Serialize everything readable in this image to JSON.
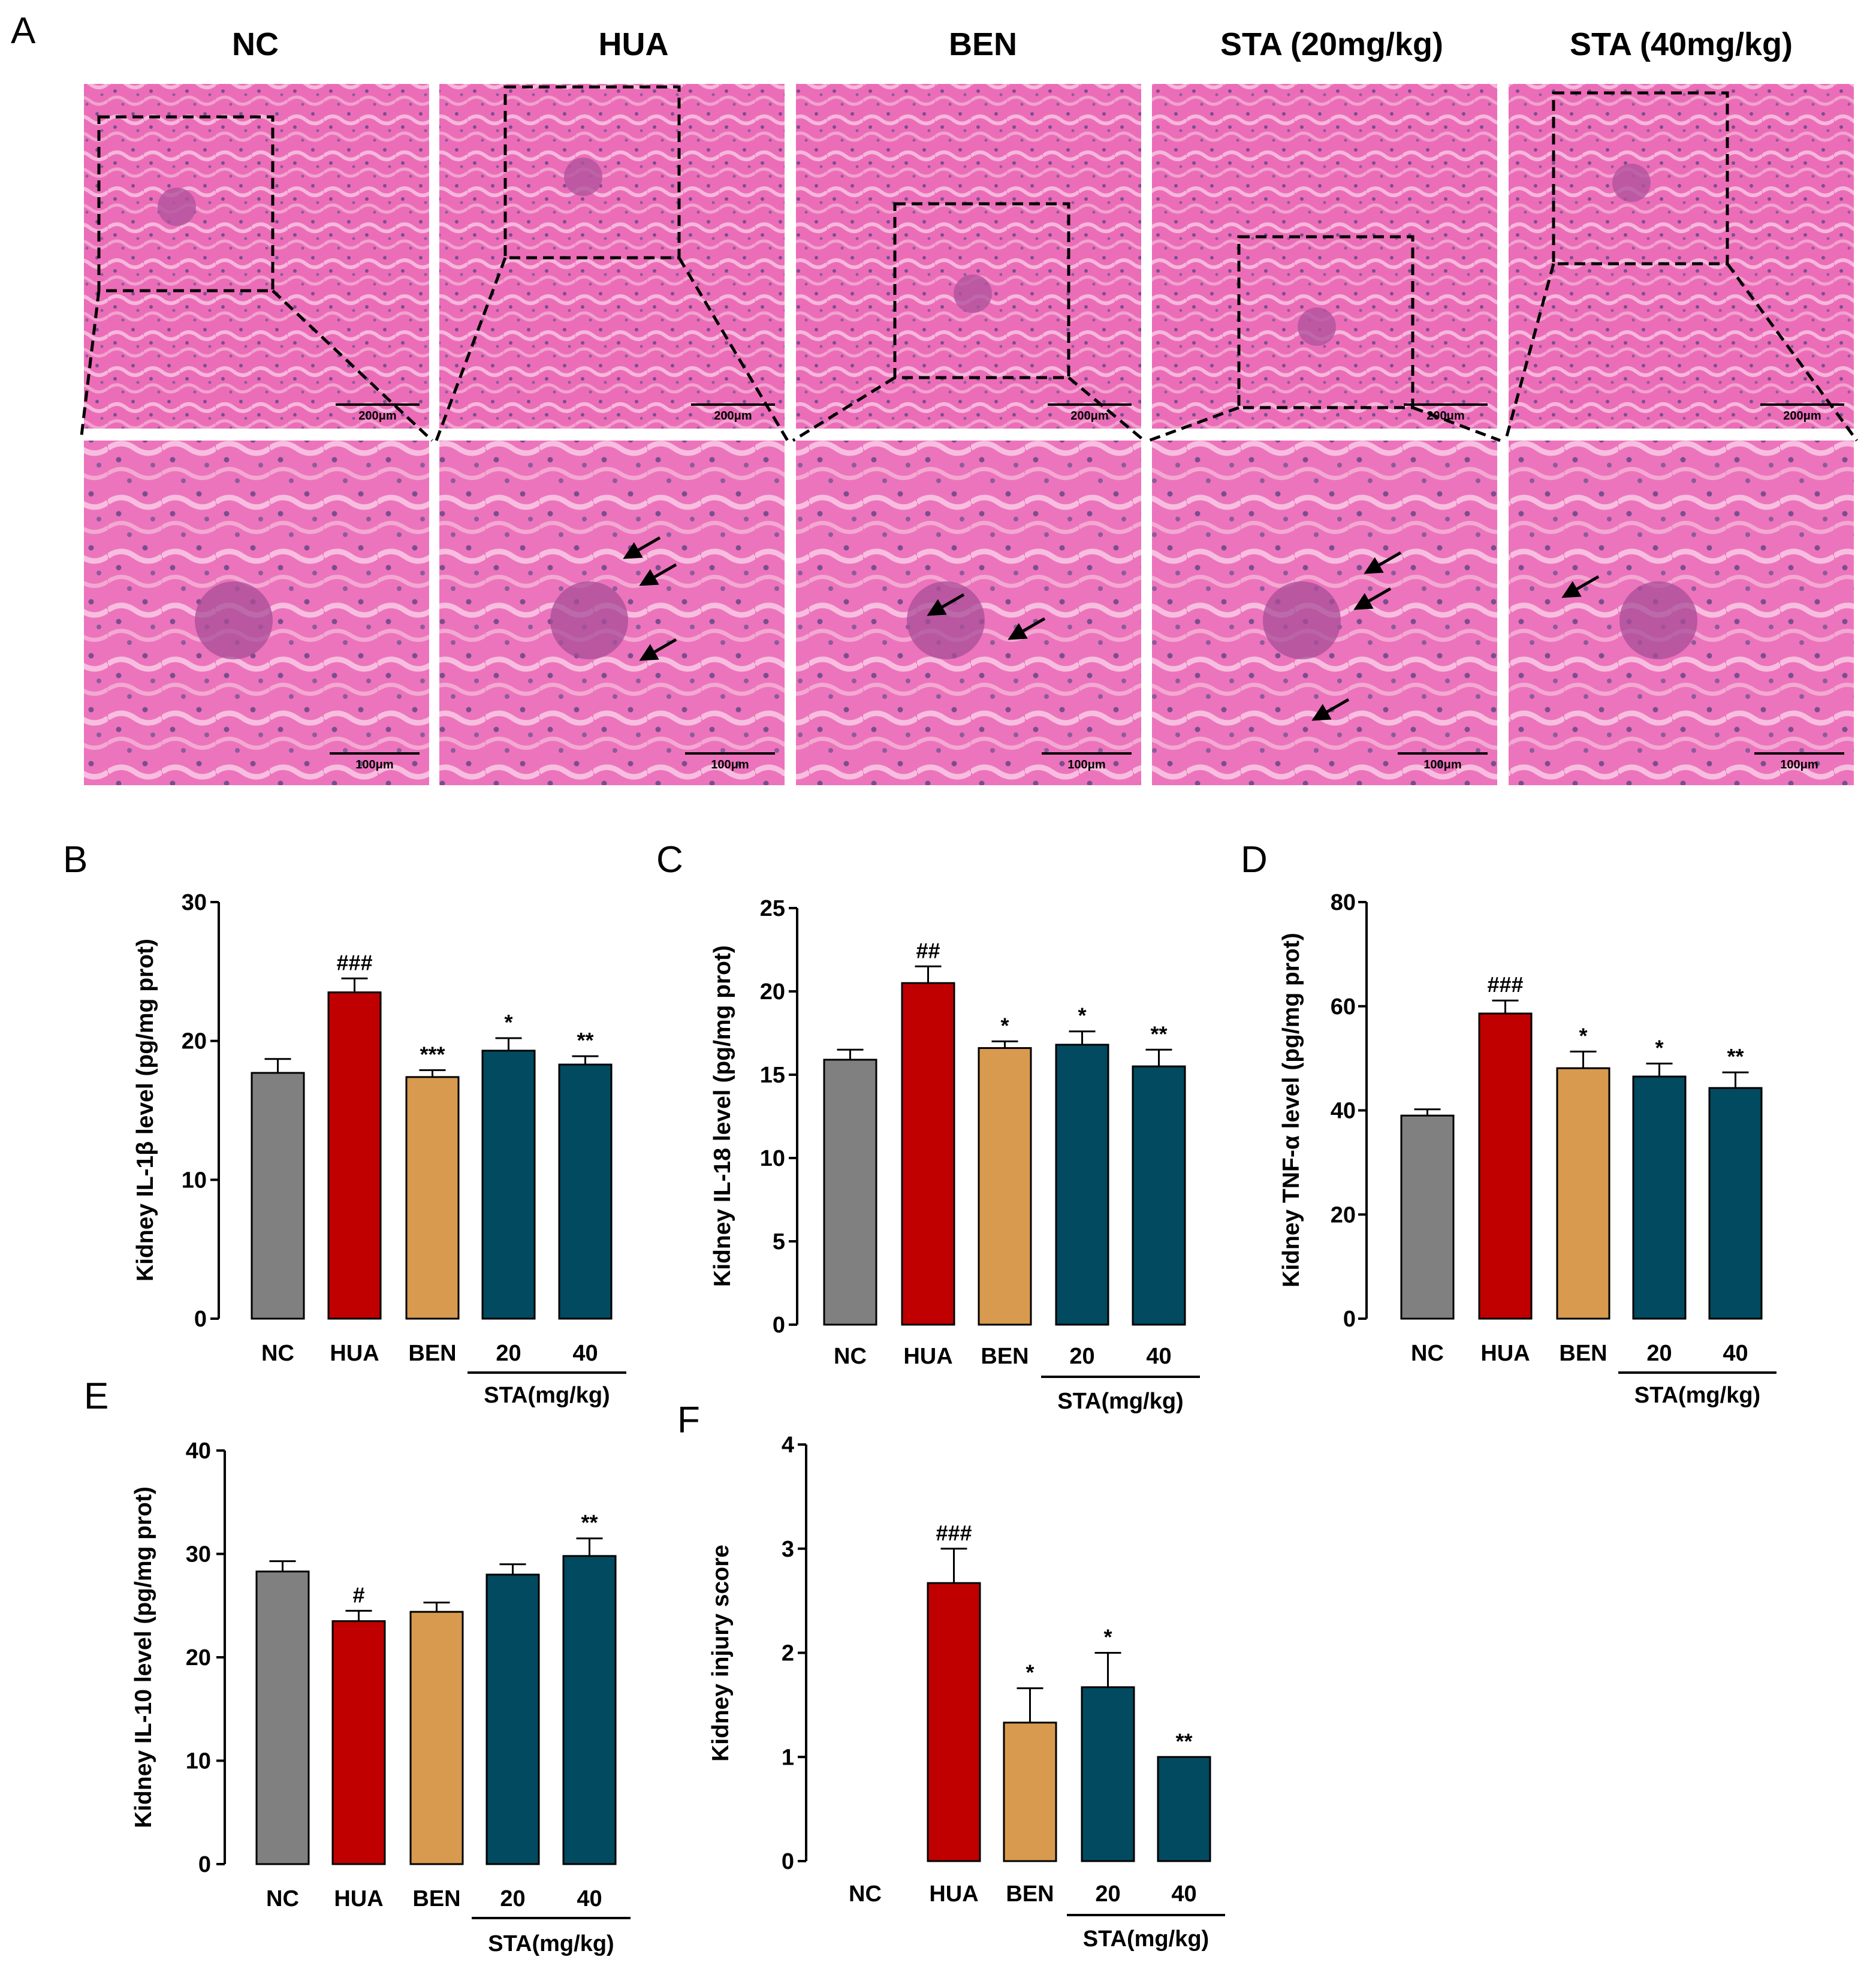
{
  "panel_a": {
    "letter": "A",
    "columns": [
      "NC",
      "HUA",
      "BEN",
      "STA (20mg/kg)",
      "STA (40mg/kg)"
    ],
    "scale_top": "200μm",
    "scale_bottom": "100μm",
    "arrow_counts": [
      0,
      3,
      2,
      3,
      1
    ]
  },
  "colors": {
    "NC": "#808080",
    "HUA": "#C00000",
    "BEN": "#D89A4E",
    "STA": "#024A60",
    "tissue": "#EB6DB8"
  },
  "chart_data": [
    {
      "panel": "B",
      "type": "bar",
      "categories": [
        "NC",
        "HUA",
        "BEN",
        "20",
        "40"
      ],
      "group_label": "STA(mg/kg)",
      "values": [
        17.7,
        23.5,
        17.4,
        19.3,
        18.3
      ],
      "errors": [
        1.0,
        1.0,
        0.5,
        0.9,
        0.6
      ],
      "significance": [
        "",
        "###",
        "***",
        "*",
        "**"
      ],
      "ylabel": "Kidney IL-1β level (pg/mg prot)",
      "ylim": [
        0,
        30
      ],
      "yticks": [
        0,
        10,
        20,
        30
      ]
    },
    {
      "panel": "C",
      "type": "bar",
      "categories": [
        "NC",
        "HUA",
        "BEN",
        "20",
        "40"
      ],
      "group_label": "STA(mg/kg)",
      "values": [
        15.9,
        20.5,
        16.6,
        16.8,
        15.5
      ],
      "errors": [
        0.6,
        1.0,
        0.4,
        0.8,
        1.0
      ],
      "significance": [
        "",
        "##",
        "*",
        "*",
        "**"
      ],
      "ylabel": "Kidney IL-18 level (pg/mg prot)",
      "ylim": [
        0,
        25
      ],
      "yticks": [
        0,
        5,
        10,
        15,
        20,
        25
      ]
    },
    {
      "panel": "D",
      "type": "bar",
      "categories": [
        "NC",
        "HUA",
        "BEN",
        "20",
        "40"
      ],
      "group_label": "STA(mg/kg)",
      "values": [
        39.0,
        58.6,
        48.1,
        46.5,
        44.3
      ],
      "errors": [
        1.2,
        2.5,
        3.2,
        2.5,
        3.0
      ],
      "significance": [
        "",
        "###",
        "*",
        "*",
        "**"
      ],
      "ylabel": "Kidney TNF-α level (pg/mg prot)",
      "ylim": [
        0,
        80
      ],
      "yticks": [
        0,
        20,
        40,
        60,
        80
      ]
    },
    {
      "panel": "E",
      "type": "bar",
      "categories": [
        "NC",
        "HUA",
        "BEN",
        "20",
        "40"
      ],
      "group_label": "STA(mg/kg)",
      "values": [
        28.3,
        23.5,
        24.4,
        28.0,
        29.8
      ],
      "errors": [
        1.0,
        1.0,
        0.9,
        1.0,
        1.7
      ],
      "significance": [
        "",
        "#",
        "",
        "",
        "**"
      ],
      "ylabel": "Kidney IL-10 level (pg/mg prot)",
      "ylim": [
        0,
        40
      ],
      "yticks": [
        0,
        10,
        20,
        30,
        40
      ]
    },
    {
      "panel": "F",
      "type": "bar",
      "categories": [
        "NC",
        "HUA",
        "BEN",
        "20",
        "40"
      ],
      "group_label": "STA(mg/kg)",
      "values": [
        0,
        2.67,
        1.33,
        1.67,
        1.0
      ],
      "errors": [
        0,
        0.33,
        0.33,
        0.33,
        0
      ],
      "significance": [
        "",
        "###",
        "*",
        "*",
        "**"
      ],
      "ylabel": "Kidney injury score",
      "ylim": [
        0,
        4
      ],
      "yticks": [
        0,
        1,
        2,
        3,
        4
      ]
    }
  ]
}
